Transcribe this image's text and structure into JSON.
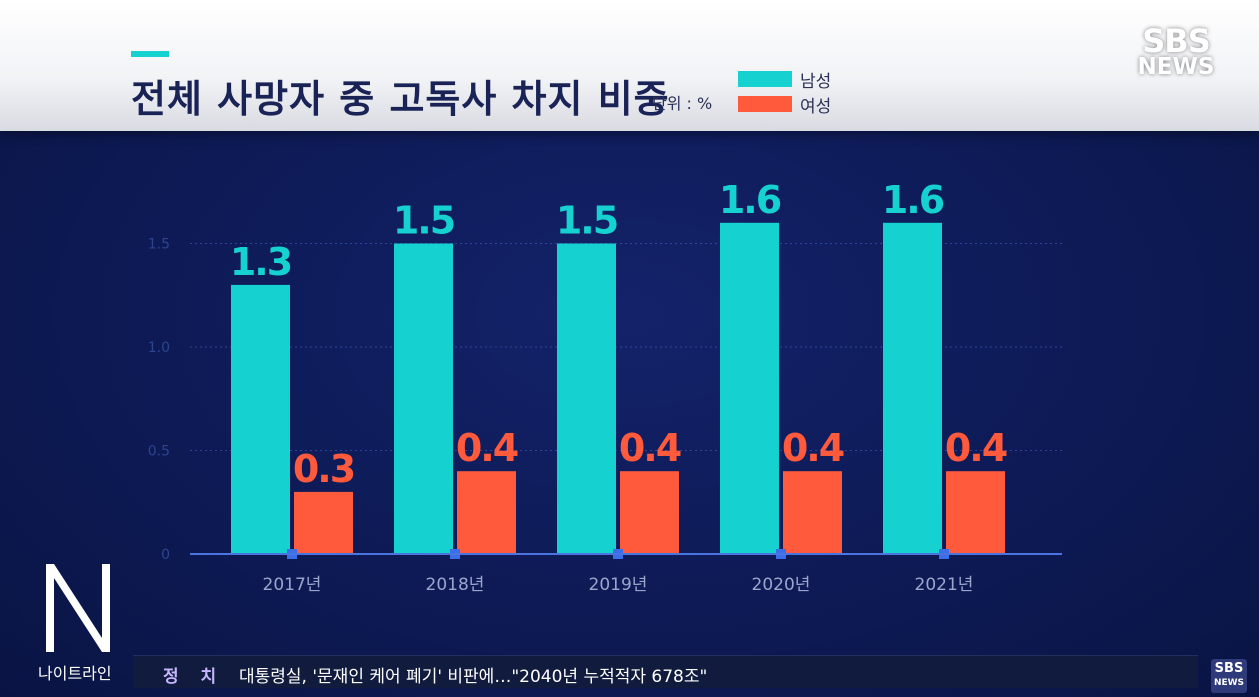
{
  "header": {
    "title": "전체 사망자 중 고독사 차지 비중",
    "unit": "단위 : %"
  },
  "logo": {
    "line1": "SBS",
    "line2": "NEWS"
  },
  "program": {
    "name": "나이트라인"
  },
  "ticker": {
    "category": "정 치",
    "headline": "대통령실, '문재인 케어 폐기' 비판에…\"2040년 누적적자 678조\""
  },
  "small_logo": {
    "line1": "SBS",
    "line2": "NEWS"
  },
  "colors": {
    "male": "#15d2d0",
    "female": "#ff5a3c",
    "grid": "#3a56b0",
    "tick": "#2d4490"
  },
  "chart_data": {
    "type": "bar",
    "categories": [
      "2017년",
      "2018년",
      "2019년",
      "2020년",
      "2021년"
    ],
    "series": [
      {
        "name": "남성",
        "values": [
          1.3,
          1.5,
          1.5,
          1.6,
          1.6
        ],
        "labels": [
          "1.3",
          "1.5",
          "1.5",
          "1.6",
          "1.6"
        ]
      },
      {
        "name": "여성",
        "values": [
          0.3,
          0.4,
          0.4,
          0.4,
          0.4
        ],
        "labels": [
          "0.3",
          "0.4",
          "0.4",
          "0.4",
          "0.4"
        ]
      }
    ],
    "yticks": [
      "0",
      "0.5",
      "1.0",
      "1.5"
    ],
    "ylim": [
      0,
      1.6
    ],
    "grid": true,
    "legend": "top-center"
  }
}
